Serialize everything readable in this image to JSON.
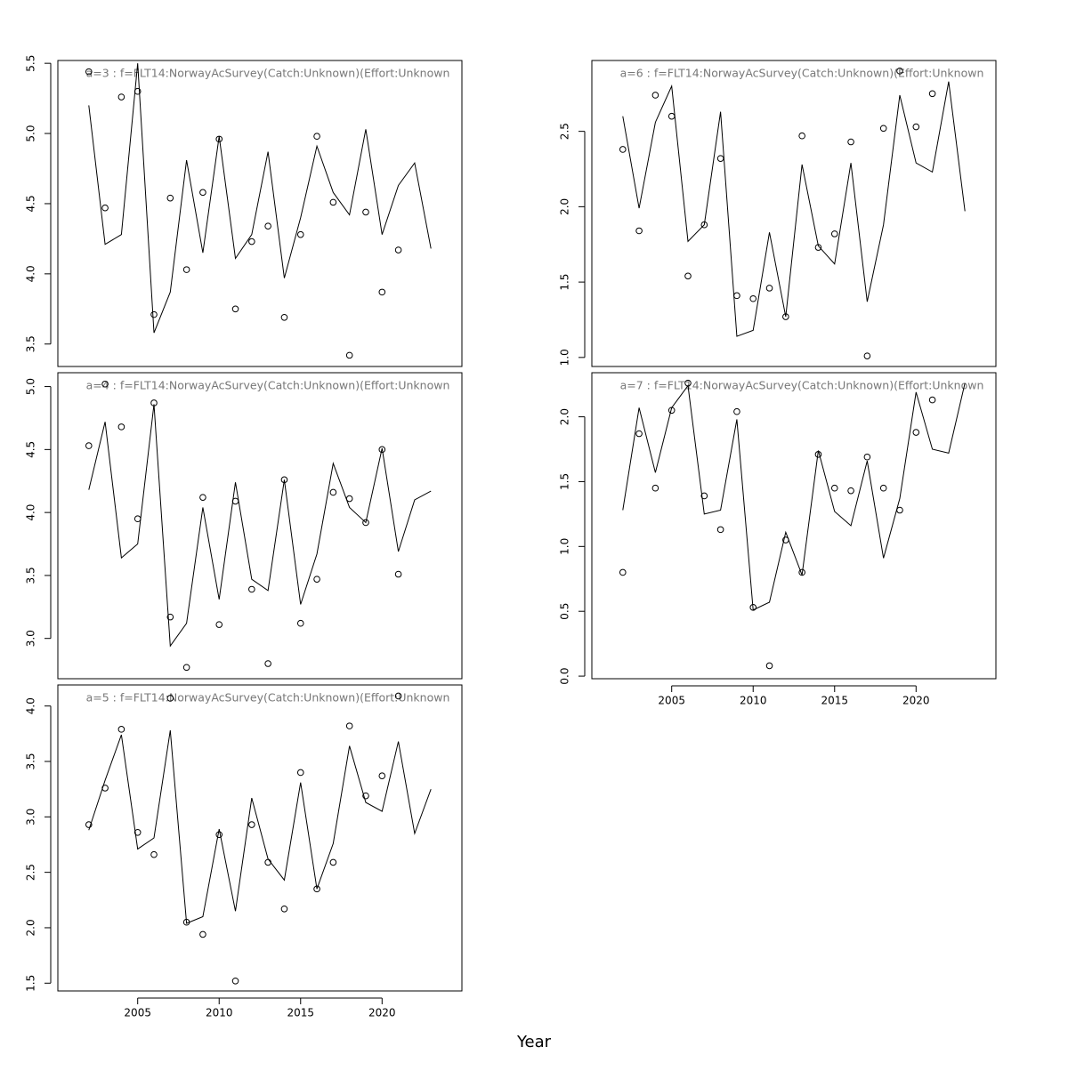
{
  "xlabel": "Year",
  "chart_data": [
    {
      "type": "line",
      "title": "a=3  :  f=FLT14:NorwayAcSurvey(Catch:Unknown)(Effort:Unknown",
      "x": [
        2002,
        2003,
        2004,
        2005,
        2006,
        2007,
        2008,
        2009,
        2010,
        2011,
        2012,
        2013,
        2014,
        2015,
        2016,
        2017,
        2018,
        2019,
        2020,
        2021,
        2022,
        2023
      ],
      "series": [
        {
          "kind": "line",
          "color": "#000000",
          "values": [
            5.2,
            4.21,
            4.28,
            5.5,
            3.58,
            3.87,
            4.81,
            4.15,
            4.98,
            4.11,
            4.28,
            4.87,
            3.97,
            4.4,
            4.91,
            4.58,
            4.42,
            5.03,
            4.28,
            4.63,
            4.79,
            4.18
          ]
        },
        {
          "kind": "points",
          "color": "#000000",
          "values": [
            5.44,
            4.47,
            5.26,
            5.3,
            3.71,
            4.54,
            4.03,
            4.58,
            4.96,
            3.75,
            4.23,
            4.34,
            3.69,
            4.28,
            4.98,
            4.51,
            3.42,
            4.44,
            3.87,
            4.17,
            null,
            null
          ]
        }
      ],
      "xlim": [
        2000.1,
        2024.9
      ],
      "ylim": [
        3.34,
        5.52
      ],
      "yticks": [
        3.5,
        {
          "value": 4,
          "label": "4.0"
        },
        4.5,
        {
          "value": 5,
          "label": "5.0"
        },
        5.5
      ]
    },
    {
      "type": "line",
      "title": "a=4  :  f=FLT14:NorwayAcSurvey(Catch:Unknown)(Effort:Unknown",
      "x": [
        2002,
        2003,
        2004,
        2005,
        2006,
        2007,
        2008,
        2009,
        2010,
        2011,
        2012,
        2013,
        2014,
        2015,
        2016,
        2017,
        2018,
        2019,
        2020,
        2021,
        2022,
        2023
      ],
      "series": [
        {
          "kind": "line",
          "color": "#000000",
          "values": [
            4.18,
            4.72,
            3.64,
            3.75,
            4.86,
            2.94,
            3.12,
            4.04,
            3.31,
            4.24,
            3.47,
            3.38,
            4.26,
            3.27,
            3.67,
            4.39,
            4.04,
            3.92,
            4.51,
            3.69,
            4.1,
            4.17
          ]
        },
        {
          "kind": "points",
          "color": "#000000",
          "values": [
            4.53,
            5.02,
            4.68,
            3.95,
            4.87,
            3.17,
            2.77,
            4.12,
            3.11,
            4.09,
            3.39,
            2.8,
            4.26,
            3.12,
            3.47,
            4.16,
            4.11,
            3.92,
            4.5,
            3.51,
            null,
            null
          ]
        }
      ],
      "xlim": [
        2000.1,
        2024.9
      ],
      "ylim": [
        2.68,
        5.11
      ],
      "yticks": [
        {
          "value": 3,
          "label": "3.0"
        },
        3.5,
        {
          "value": 4,
          "label": "4.0"
        },
        4.5,
        {
          "value": 5,
          "label": "5.0"
        }
      ]
    },
    {
      "type": "line",
      "title": "a=5  :  f=FLT14:NorwayAcSurvey(Catch:Unknown)(Effort:Unknown",
      "x": [
        2002,
        2003,
        2004,
        2005,
        2006,
        2007,
        2008,
        2009,
        2010,
        2011,
        2012,
        2013,
        2014,
        2015,
        2016,
        2017,
        2018,
        2019,
        2020,
        2021,
        2022,
        2023
      ],
      "series": [
        {
          "kind": "line",
          "color": "#000000",
          "values": [
            2.88,
            3.33,
            3.74,
            2.71,
            2.81,
            3.78,
            2.04,
            2.1,
            2.89,
            2.15,
            3.17,
            2.62,
            2.43,
            3.31,
            2.35,
            2.76,
            3.64,
            3.13,
            3.05,
            3.68,
            2.85,
            3.25
          ]
        },
        {
          "kind": "points",
          "color": "#000000",
          "values": [
            2.93,
            3.26,
            3.79,
            2.86,
            2.66,
            4.07,
            2.05,
            1.94,
            2.84,
            1.52,
            2.93,
            2.59,
            2.17,
            3.4,
            2.35,
            2.59,
            3.82,
            3.19,
            3.37,
            4.09,
            null,
            null
          ]
        }
      ],
      "xlim": [
        2000.1,
        2024.9
      ],
      "ylim": [
        1.43,
        4.19
      ],
      "xticks": [
        2005,
        2010,
        2015,
        2020
      ],
      "yticks": [
        1.5,
        {
          "value": 2,
          "label": "2.0"
        },
        2.5,
        {
          "value": 3,
          "label": "3.0"
        },
        3.5,
        {
          "value": 4,
          "label": "4.0"
        }
      ]
    },
    {
      "type": "line",
      "title": "a=6  :  f=FLT14:NorwayAcSurvey(Catch:Unknown)(Effort:Unknown",
      "x": [
        2002,
        2003,
        2004,
        2005,
        2006,
        2007,
        2008,
        2009,
        2010,
        2011,
        2012,
        2013,
        2014,
        2015,
        2016,
        2017,
        2018,
        2019,
        2020,
        2021,
        2022,
        2023
      ],
      "series": [
        {
          "kind": "line",
          "color": "#000000",
          "values": [
            2.6,
            1.99,
            2.56,
            2.8,
            1.77,
            1.88,
            2.63,
            1.14,
            1.18,
            1.83,
            1.27,
            2.28,
            1.74,
            1.62,
            2.29,
            1.37,
            1.88,
            2.74,
            2.29,
            2.23,
            2.83,
            1.97
          ]
        },
        {
          "kind": "points",
          "color": "#000000",
          "values": [
            2.38,
            1.84,
            2.74,
            2.6,
            1.54,
            1.88,
            2.32,
            1.41,
            1.39,
            1.46,
            1.27,
            2.47,
            1.73,
            1.82,
            2.43,
            1.01,
            2.52,
            2.9,
            2.53,
            2.75,
            null,
            null
          ]
        }
      ],
      "xlim": [
        2000.1,
        2024.9
      ],
      "ylim": [
        0.94,
        2.97
      ],
      "yticks": [
        {
          "value": 1,
          "label": "1.0"
        },
        1.5,
        {
          "value": 2,
          "label": "2.0"
        },
        2.5
      ]
    },
    {
      "type": "line",
      "title": "a=7  :  f=FLT14:NorwayAcSurvey(Catch:Unknown)(Effort:Unknown",
      "x": [
        2002,
        2003,
        2004,
        2005,
        2006,
        2007,
        2008,
        2009,
        2010,
        2011,
        2012,
        2013,
        2014,
        2015,
        2016,
        2017,
        2018,
        2019,
        2020,
        2021,
        2022,
        2023
      ],
      "series": [
        {
          "kind": "line",
          "color": "#000000",
          "values": [
            1.28,
            2.07,
            1.57,
            2.07,
            2.24,
            1.25,
            1.28,
            1.98,
            0.51,
            0.57,
            1.11,
            0.78,
            1.74,
            1.27,
            1.16,
            1.66,
            0.91,
            1.37,
            2.19,
            1.75,
            1.72,
            2.26
          ]
        },
        {
          "kind": "points",
          "color": "#000000",
          "values": [
            0.8,
            1.87,
            1.45,
            2.05,
            2.26,
            1.39,
            1.13,
            2.04,
            0.53,
            0.08,
            1.05,
            0.8,
            1.71,
            1.45,
            1.43,
            1.69,
            1.45,
            1.28,
            1.88,
            2.13,
            null,
            null
          ]
        }
      ],
      "xlim": [
        2000.1,
        2024.9
      ],
      "ylim": [
        -0.02,
        2.34
      ],
      "xticks": [
        2005,
        2010,
        2015,
        2020
      ],
      "yticks": [
        {
          "value": 0,
          "label": "0.0"
        },
        0.5,
        {
          "value": 1,
          "label": "1.0"
        },
        1.5,
        {
          "value": 2,
          "label": "2.0"
        }
      ]
    }
  ]
}
